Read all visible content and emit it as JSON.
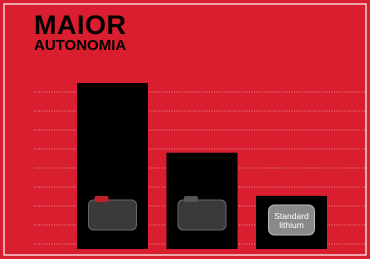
{
  "chart_data": {
    "type": "bar",
    "title": "MAIOR",
    "subtitle": "AUTONOMIA",
    "categories": [
      null,
      null,
      "Standard lithium"
    ],
    "values": [
      100,
      58,
      32
    ],
    "color": "#000000",
    "ylim": [
      0,
      100
    ]
  }
}
